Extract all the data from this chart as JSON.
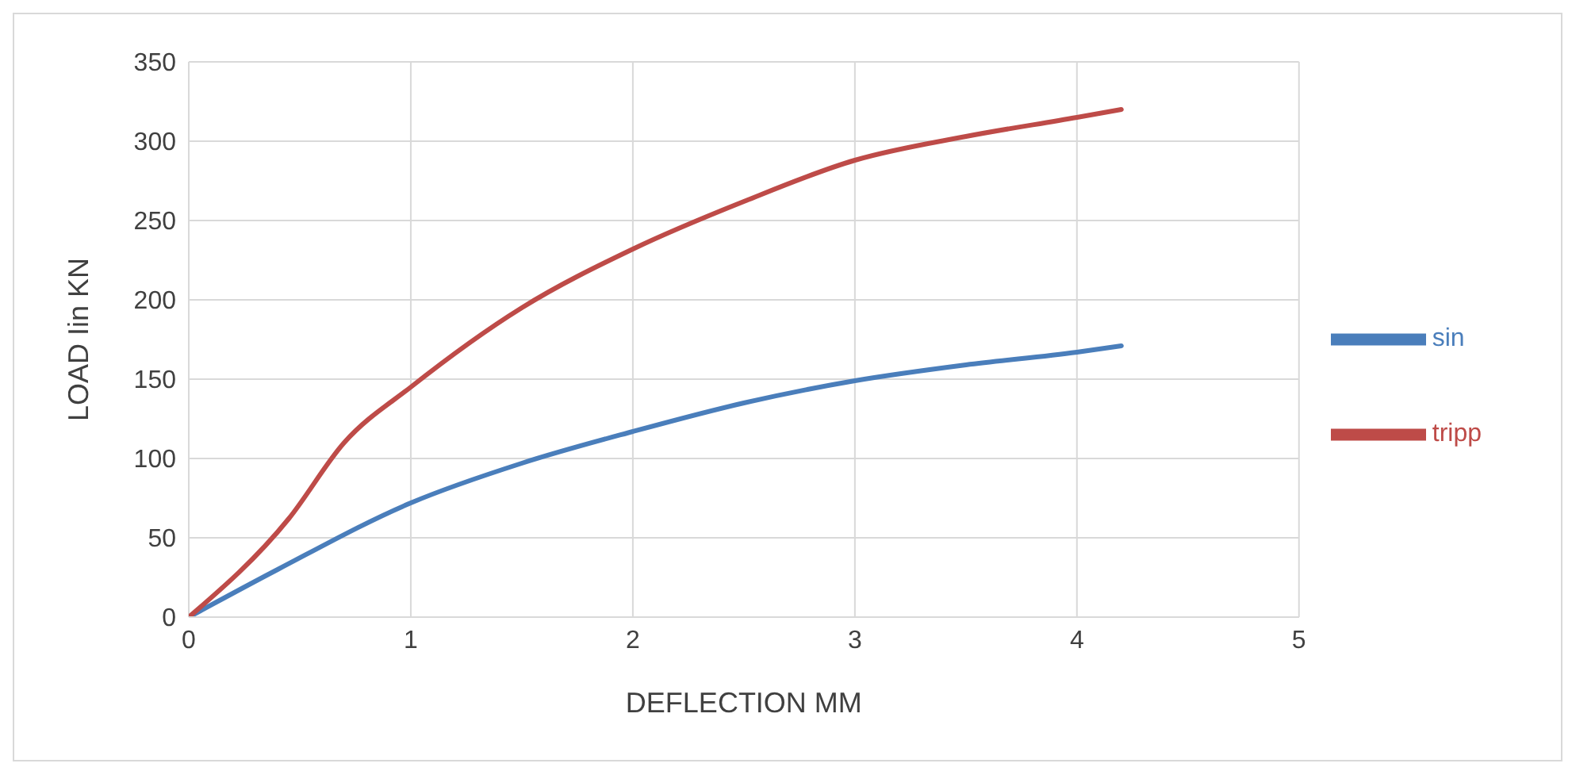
{
  "chart_data": {
    "type": "line",
    "xlabel": "DEFLECTION  MM",
    "ylabel": "LOAD Iin KN",
    "xlim": [
      0,
      5
    ],
    "xticks": [
      0,
      1,
      2,
      3,
      4,
      5
    ],
    "ylim": [
      0,
      350
    ],
    "yticks": [
      0,
      50,
      100,
      150,
      200,
      250,
      300,
      350
    ],
    "grid": true,
    "legend": "right",
    "marker": "none",
    "line_style": "solid",
    "series": [
      {
        "name": "sin",
        "color": "#4a7ebb",
        "x": [
          0,
          0.4,
          1,
          1.5,
          2,
          2.5,
          3,
          3.5,
          4,
          4.2
        ],
        "values": [
          0,
          30,
          72,
          97,
          117,
          135,
          149,
          159,
          167,
          171
        ]
      },
      {
        "name": "tripp",
        "color": "#be4b48",
        "x": [
          0,
          0.45,
          0.7,
          1,
          1.5,
          2,
          2.5,
          3,
          3.5,
          4,
          4.2
        ],
        "values": [
          0,
          62,
          110,
          145,
          195,
          232,
          262,
          288,
          303,
          315,
          320
        ]
      }
    ]
  }
}
